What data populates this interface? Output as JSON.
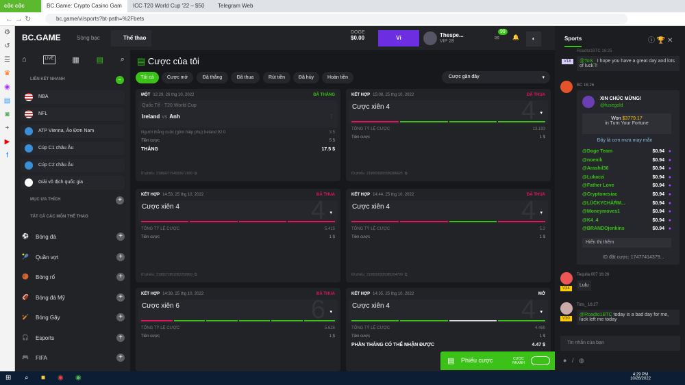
{
  "browser": {
    "brand": "cốc cốc",
    "tabs": [
      "BC.Game: Crypto Casino Gam",
      "ICC T20 World Cup '22 – $50",
      "Telegram Web"
    ],
    "url": "bc.game/vi/sports?bt-path=%2Fbets"
  },
  "header": {
    "logo": "BC.GAME",
    "nav": [
      "Sòng bạc",
      "Thể thao"
    ],
    "currency": "DOGE",
    "balance": "$0.00",
    "wallet": "Ví",
    "username": "Thespe...",
    "vip": "VIP 28",
    "mail_badge": "99"
  },
  "sidebar": {
    "quick_links_title": "LIÊN KẾT NHANH",
    "quick_links": [
      {
        "label": "NBA",
        "icon": "us-flag"
      },
      {
        "label": "NFL",
        "icon": "us-flag"
      },
      {
        "label": "ATP Vienna, Áo Đơn Nam",
        "icon": "globe"
      },
      {
        "label": "Cúp C1 châu Âu",
        "icon": "globe"
      },
      {
        "label": "Cúp C2 châu Âu",
        "icon": "globe"
      },
      {
        "label": "Giải vô địch quốc gia",
        "icon": "england-flag"
      }
    ],
    "favorites_title": "MỤC ƯA THÍCH",
    "all_sports_title": "TẤT CẢ CÁC MÔN THỂ THAO",
    "sports": [
      "Bóng đá",
      "Quần vợt",
      "Bóng rổ",
      "Bóng đá Mỹ",
      "Bóng Gậy",
      "Esports",
      "FIFA"
    ]
  },
  "main": {
    "title": "Cược của tôi",
    "filters": [
      "Tất cả",
      "Cược mở",
      "Đã thắng",
      "Đã thua",
      "Rút tiền",
      "Đã hủy",
      "Hoàn tiền"
    ],
    "sort": "Cược gần đây",
    "cards": [
      {
        "type": "MỘT",
        "time": "12:29, 26 thg 10, 2022",
        "status": "ĐÃ THẮNG",
        "status_color": "#3bc117",
        "league": "Quốc Tế - T20 World Cup",
        "team1": "Ireland",
        "vs": "vs",
        "team2": "Anh",
        "market": "Người thắng cuộc (gồm hiệp phụ) Ireland  92:0",
        "odds": "3.5",
        "stake_label": "Tiền cược",
        "stake": "5 $",
        "result_label": "THẮNG",
        "result": "17.5 $",
        "id_label": "ID phiếu:",
        "id": "2196927754533671999"
      },
      {
        "type": "KẾT HỢP",
        "time": "15:08, 25 thg 10, 2022",
        "status": "ĐÃ THUA",
        "status_color": "#e3155b",
        "title": "Cược xiên 4",
        "big": "4",
        "legs": [
          "lost",
          "won",
          "won",
          "won"
        ],
        "odds_label": "TỔNG TỶ LỆ CƯỢC",
        "odds": "13.193",
        "stake_label": "Tiền cược",
        "stake": "1 $",
        "id_label": "ID phiếu:",
        "id": "2196600265506386625"
      },
      {
        "type": "KẾT HỢP",
        "time": "14:53, 25 thg 10, 2022",
        "status": "ĐÃ THUA",
        "status_color": "#e3155b",
        "title": "Cược xiên 4",
        "big": "4",
        "legs": [
          "lost",
          "lost",
          "lost",
          "lost"
        ],
        "odds_label": "TỔNG TỶ LỆ CƯỢC",
        "odds": "5.415",
        "stake_label": "Tiền cược",
        "stake": "1 $",
        "id_label": "ID phiếu:",
        "id": "2196571851052259969"
      },
      {
        "type": "KẾT HỢP",
        "time": "14:44, 25 thg 10, 2022",
        "status": "ĐÃ THUA",
        "status_color": "#e3155b",
        "title": "Cược xiên 4",
        "big": "4",
        "legs": [
          "lost",
          "lost",
          "won",
          "lost"
        ],
        "odds_label": "TỔNG TỶ LỆ CƯỢC",
        "odds": "5.2",
        "stake_label": "Tiền cược",
        "stake": "1 $",
        "id_label": "ID phiếu:",
        "id": "2196550205085204799"
      },
      {
        "type": "KẾT HỢP",
        "time": "14:38, 25 thg 10, 2022",
        "status": "ĐÃ THUA",
        "status_color": "#e3155b",
        "title": "Cược xiên 6",
        "big": "6",
        "legs": [
          "lost",
          "won",
          "won",
          "won",
          "won",
          "won"
        ],
        "odds_label": "TỔNG TỶ LỆ CƯỢC",
        "odds": "5.626",
        "stake_label": "Tiền cược",
        "stake": "1 $"
      },
      {
        "type": "KẾT HỢP",
        "time": "14:35, 25 thg 10, 2022",
        "status": "MỞ",
        "status_color": "#ffffff",
        "title": "Cược xiên 4",
        "big": "4",
        "legs": [
          "won",
          "won",
          "open",
          "won"
        ],
        "odds_label": "TỔNG TỶ LỆ CƯỢC",
        "odds": "4.468",
        "stake_label": "Tiền cược",
        "stake": "1 $",
        "result_label": "PHẦN THẮNG CÓ THỂ NHẬN ĐƯỢC",
        "result": "4.47 $"
      }
    ]
  },
  "betslip": {
    "label": "Phiếu cược",
    "quick": "CƯỢC NHANH"
  },
  "chat": {
    "tab": "Sports",
    "messages": [
      {
        "user": "Roadto1BTC",
        "time": "16:25",
        "vip": "V18",
        "mention": "@Tots_",
        "text": "I hope you have a great day and lots of luck !!"
      },
      {
        "user": "BC",
        "time": "16:26"
      },
      {
        "user": "Tequila 007",
        "time": "16:26",
        "vip": "V34",
        "text": "Lulu"
      },
      {
        "user": "Tots_",
        "time": "16:27",
        "vip": "V30",
        "mention": "@Roadto1BTC",
        "text": "today is a bad day for me, luck left me today"
      }
    ],
    "rain": {
      "title": "XIN CHÚC MỪNG!",
      "user": "@fusegold",
      "won_label": "Won",
      "won": "$3779.17",
      "game": "in Turn Your Fortune",
      "subtitle": "Đây là cơn mưa may mắn",
      "winners": [
        [
          "@Doge Team",
          "$0.94"
        ],
        [
          "@noenik",
          "$0.94"
        ],
        [
          "@Arashil36",
          "$0.94"
        ],
        [
          "@Lukaczi",
          "$0.94"
        ],
        [
          "@Father Love",
          "$0.94"
        ],
        [
          "@Cryptonesiac",
          "$0.94"
        ],
        [
          "@LŪĆKYCHĂŔM...",
          "$0.94"
        ],
        [
          "@Moneymoves1",
          "$0.94"
        ],
        [
          "@K4_4",
          "$0.94"
        ],
        [
          "@BRANDOjenkins",
          "$0.94"
        ]
      ],
      "more": "Hiển thị thêm",
      "bet_id": "ID đặt cược: 17477414379..."
    },
    "input_placeholder": "Tin nhắn của bạn"
  },
  "taskbar": {
    "time": "4:29 PM",
    "date": "10/26/2022"
  }
}
